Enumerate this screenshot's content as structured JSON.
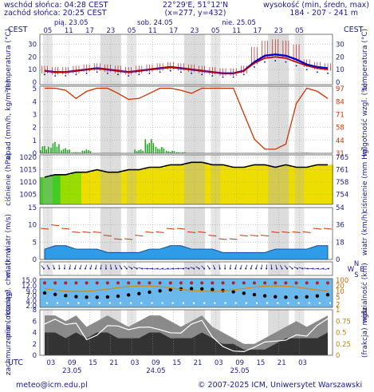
{
  "header": {
    "sunrise": "wschód słońca: 04:28 CEST",
    "sunset": "zachód słońca: 20:25 CEST",
    "coords": "22°29'E, 51°12'N",
    "grid": "(x=277, y=432)",
    "elev_label": "wysokość (min, średn, max)",
    "elev_vals": "184 - 207 - 241 m"
  },
  "timezone_left": "CEST",
  "timezone_right": "CEST",
  "utc_label": "UTC",
  "days_top": [
    "pią. 23.05",
    "sob. 24.05",
    "nie. 25.05"
  ],
  "hours_top": [
    "05",
    "11",
    "17",
    "23",
    "05",
    "11",
    "17",
    "23",
    "05",
    "11",
    "17",
    "23",
    "05"
  ],
  "hours_bottom": [
    "03",
    "09",
    "15",
    "21",
    "03",
    "09",
    "15",
    "21",
    "03",
    "09",
    "15",
    "21",
    "03"
  ],
  "dates_bottom": [
    "23.05",
    "24.05",
    "25.05"
  ],
  "footer": {
    "email": "meteo@icm.edu.pl",
    "copyright": "© 2007-2025 ICM, Uniwersytet Warszawski"
  },
  "colors": {
    "axis_text": "#1a1a8c",
    "grid_gray": "#d8d8d8",
    "temp_max": "#c00000",
    "temp_mean": "#0000cc",
    "rain": "#22aa22",
    "humidity": "#cc3300",
    "wind_fill": "#2f9ce8",
    "cloud_dark": "#333333"
  },
  "chart_data": [
    {
      "type": "line",
      "ylabel_left": "temperatura (°C)",
      "ylabel_right": "temperatura (°C)",
      "ylim": [
        -2,
        38
      ],
      "yticks_left": [
        "30",
        "20",
        "10",
        "0"
      ],
      "yticks_right": [
        "30",
        "20",
        "10",
        "0"
      ],
      "series": [
        {
          "values": [
            9,
            8,
            8,
            9,
            10,
            11,
            10,
            9,
            8,
            9,
            10,
            11,
            12,
            11,
            10,
            9,
            8,
            7,
            7,
            9,
            16,
            21,
            22,
            21,
            18,
            14,
            12,
            11
          ]
        },
        {
          "values": [
            8,
            7,
            7,
            8,
            9,
            10,
            9,
            8,
            7,
            8,
            9,
            10,
            11,
            10,
            9,
            8,
            7,
            6,
            6,
            8,
            14,
            18,
            19,
            18,
            15,
            12,
            10,
            9
          ]
        }
      ]
    },
    {
      "type": "bar",
      "ylabel_left": "opad (mm/h, kg/m²/h)",
      "ylabel_right": "wilgotność wzgl. (%)",
      "yticks_left": [
        "5",
        "4",
        "3",
        "2",
        "1",
        "0"
      ],
      "yticks_right": [
        "97",
        "84",
        "71",
        "58",
        "44",
        "31"
      ],
      "humidity": [
        95,
        95,
        93,
        85,
        92,
        95,
        95,
        90,
        84,
        85,
        90,
        95,
        95,
        93,
        90,
        95,
        95,
        95,
        95,
        70,
        45,
        35,
        35,
        40,
        80,
        95,
        92,
        85
      ],
      "rain": [
        0.6,
        0.9,
        0.4,
        0.1,
        0.3,
        0.0,
        0.0,
        0.0,
        0.0,
        0.3,
        1.1,
        0.5,
        0.2,
        0.1,
        0.0,
        0.0,
        0.0,
        0.0,
        0.0,
        0.0,
        0.0,
        0.0,
        0.0,
        0.0,
        0.0,
        0.05,
        0.0,
        0.0
      ]
    },
    {
      "type": "line",
      "ylabel_left": "ciśnienie (hPa)",
      "ylabel_right": "ciśnienie (mm Hg)",
      "ylim": [
        1001,
        1021
      ],
      "yticks_left": [
        "1020",
        "1015",
        "1010",
        "1005"
      ],
      "yticks_right": [
        "765",
        "761",
        "758",
        "754"
      ],
      "values": [
        1012,
        1013,
        1013,
        1014,
        1014,
        1015,
        1014,
        1014,
        1015,
        1015,
        1016,
        1016,
        1017,
        1017,
        1018,
        1018,
        1017,
        1017,
        1016,
        1016,
        1017,
        1017,
        1016,
        1017,
        1016,
        1016,
        1017,
        1017
      ]
    },
    {
      "type": "area",
      "ylabel_left": "wiatr (m/s)",
      "ylabel_right": "wiatr (km/h)",
      "ylim": [
        0,
        15
      ],
      "yticks_left": [
        "15",
        "10",
        "5",
        "0"
      ],
      "yticks_right": [
        "54",
        "36",
        "18",
        "0"
      ],
      "wind": [
        3,
        4,
        4,
        3,
        3,
        3,
        2,
        2,
        2,
        2,
        3,
        3,
        4,
        4,
        3,
        3,
        3,
        2,
        2,
        2,
        2,
        2,
        3,
        3,
        3,
        3,
        4,
        4
      ],
      "gusts": [
        9,
        10,
        9,
        8,
        8,
        8,
        7,
        6,
        6,
        7,
        8,
        8,
        9,
        9,
        8,
        8,
        7,
        6,
        6,
        7,
        7,
        7,
        8,
        8,
        8,
        8,
        9,
        9
      ]
    },
    {
      "type": "scatter",
      "ylabel_left": "wiatr",
      "legend": [
        "N",
        "S",
        "W",
        "E"
      ]
    },
    {
      "type": "scatter",
      "ylabel_left": "pion. rozciągł. chm. (km)",
      "ylabel_right": "widzialność (km)",
      "yticks_left": [
        "15.0",
        "12.0",
        "9.0",
        "7.0",
        "4.0",
        "2.0"
      ],
      "yticks_right": [
        "100",
        "20",
        "10",
        "5",
        "2"
      ]
    },
    {
      "type": "area",
      "ylabel_left": "zachmurzenie (oktanty)",
      "ylabel_right": "(frakcja) mgła",
      "yticks_left": [
        "8",
        "6",
        "4",
        "2",
        "0"
      ],
      "yticks_right": [
        "1",
        "0.75",
        "0.5",
        "0.25",
        "0"
      ],
      "cloud_total": [
        7,
        7,
        6,
        7,
        5,
        6,
        7,
        6,
        5,
        6,
        7,
        7,
        6,
        5,
        6,
        7,
        5,
        4,
        3,
        2,
        2,
        3,
        4,
        5,
        6,
        5,
        6,
        7
      ],
      "cloud_low": [
        4,
        4,
        3,
        4,
        3,
        4,
        4,
        3,
        3,
        3,
        4,
        4,
        3,
        3,
        3,
        4,
        3,
        2,
        2,
        1,
        1,
        1,
        2,
        3,
        3,
        3,
        3,
        4
      ]
    }
  ]
}
